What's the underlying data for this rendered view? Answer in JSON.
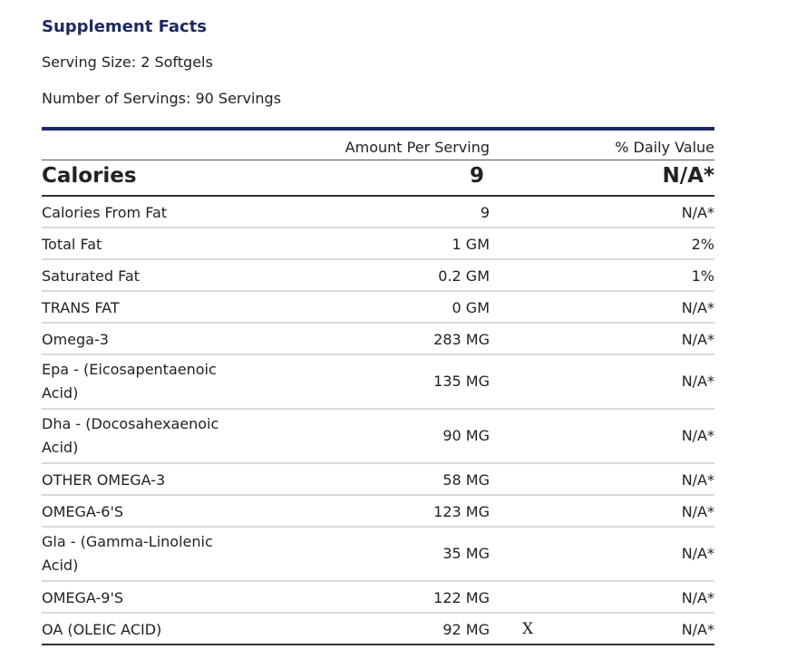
{
  "title": "Supplement Facts",
  "serving_size": "Serving Size: 2 Softgels",
  "servings": "Number of Servings: 90 Servings",
  "table": {
    "header_amount": "Amount Per Serving",
    "header_dv": "% Daily Value",
    "calories": {
      "name": "Calories",
      "amount": "9",
      "dv": "N/A*"
    },
    "rows": [
      {
        "name": "Calories From Fat",
        "amount": "9",
        "dv": "N/A*"
      },
      {
        "name": "Total Fat",
        "amount": "1 GM",
        "dv": "2%"
      },
      {
        "name": "Saturated Fat",
        "amount": "0.2 GM",
        "dv": "1%"
      },
      {
        "name": "TRANS FAT",
        "amount": "0 GM",
        "dv": "N/A*"
      },
      {
        "name": "Omega-3",
        "amount": "283 MG",
        "dv": "N/A*"
      },
      {
        "name": "Epa  - (Eicosapentaenoic Acid)",
        "amount": "135 MG",
        "dv": "N/A*"
      },
      {
        "name": "Dha  - (Docosahexaenoic Acid)",
        "amount": "90 MG",
        "dv": "N/A*"
      },
      {
        "name": "OTHER OMEGA-3",
        "amount": "58 MG",
        "dv": "N/A*"
      },
      {
        "name": "OMEGA-6'S",
        "amount": "123 MG",
        "dv": "N/A*"
      },
      {
        "name": "Gla  - (Gamma-Linolenic Acid)",
        "amount": "35 MG",
        "dv": "N/A*"
      },
      {
        "name": "OMEGA-9'S",
        "amount": "122 MG",
        "dv": "N/A*"
      },
      {
        "name": "OA (OLEIC ACID)",
        "amount": "92 MG",
        "dv": "N/A*",
        "mark": "X"
      }
    ]
  }
}
